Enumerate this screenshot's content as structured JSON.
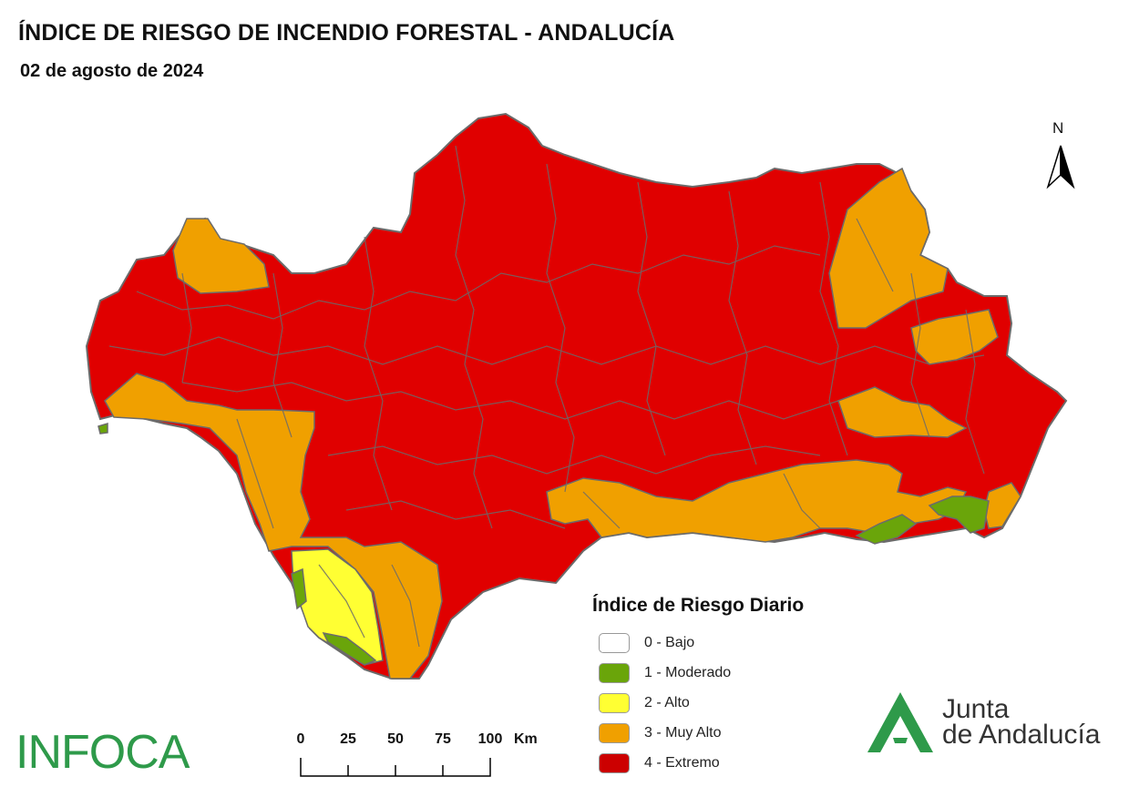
{
  "header": {
    "title": "ÍNDICE DE RIESGO DE INCENDIO FORESTAL - ANDALUCÍA",
    "date": "02 de agosto de 2024"
  },
  "north_arrow": {
    "label": "N"
  },
  "legend": {
    "title": "Índice de Riesgo Diario",
    "items": [
      {
        "label": "0 - Bajo",
        "color": "#ffffff"
      },
      {
        "label": "1 - Moderado",
        "color": "#6aa50a"
      },
      {
        "label": "2 - Alto",
        "color": "#ffff33"
      },
      {
        "label": "3 - Muy Alto",
        "color": "#f0a000"
      },
      {
        "label": "4 - Extremo",
        "color": "#e00000"
      }
    ]
  },
  "scale_bar": {
    "ticks": [
      "0",
      "25",
      "50",
      "75",
      "100"
    ],
    "unit": "Km"
  },
  "logos": {
    "infoca": "INFOCA",
    "junta_line1": "Junta",
    "junta_line2": "de Andalucía"
  },
  "colors": {
    "extremo": "#e00000",
    "muy_alto": "#f0a000",
    "alto": "#ffff33",
    "moderado": "#6aa50a",
    "border": "#6b6b6b",
    "brand_green": "#2e9a4a"
  }
}
